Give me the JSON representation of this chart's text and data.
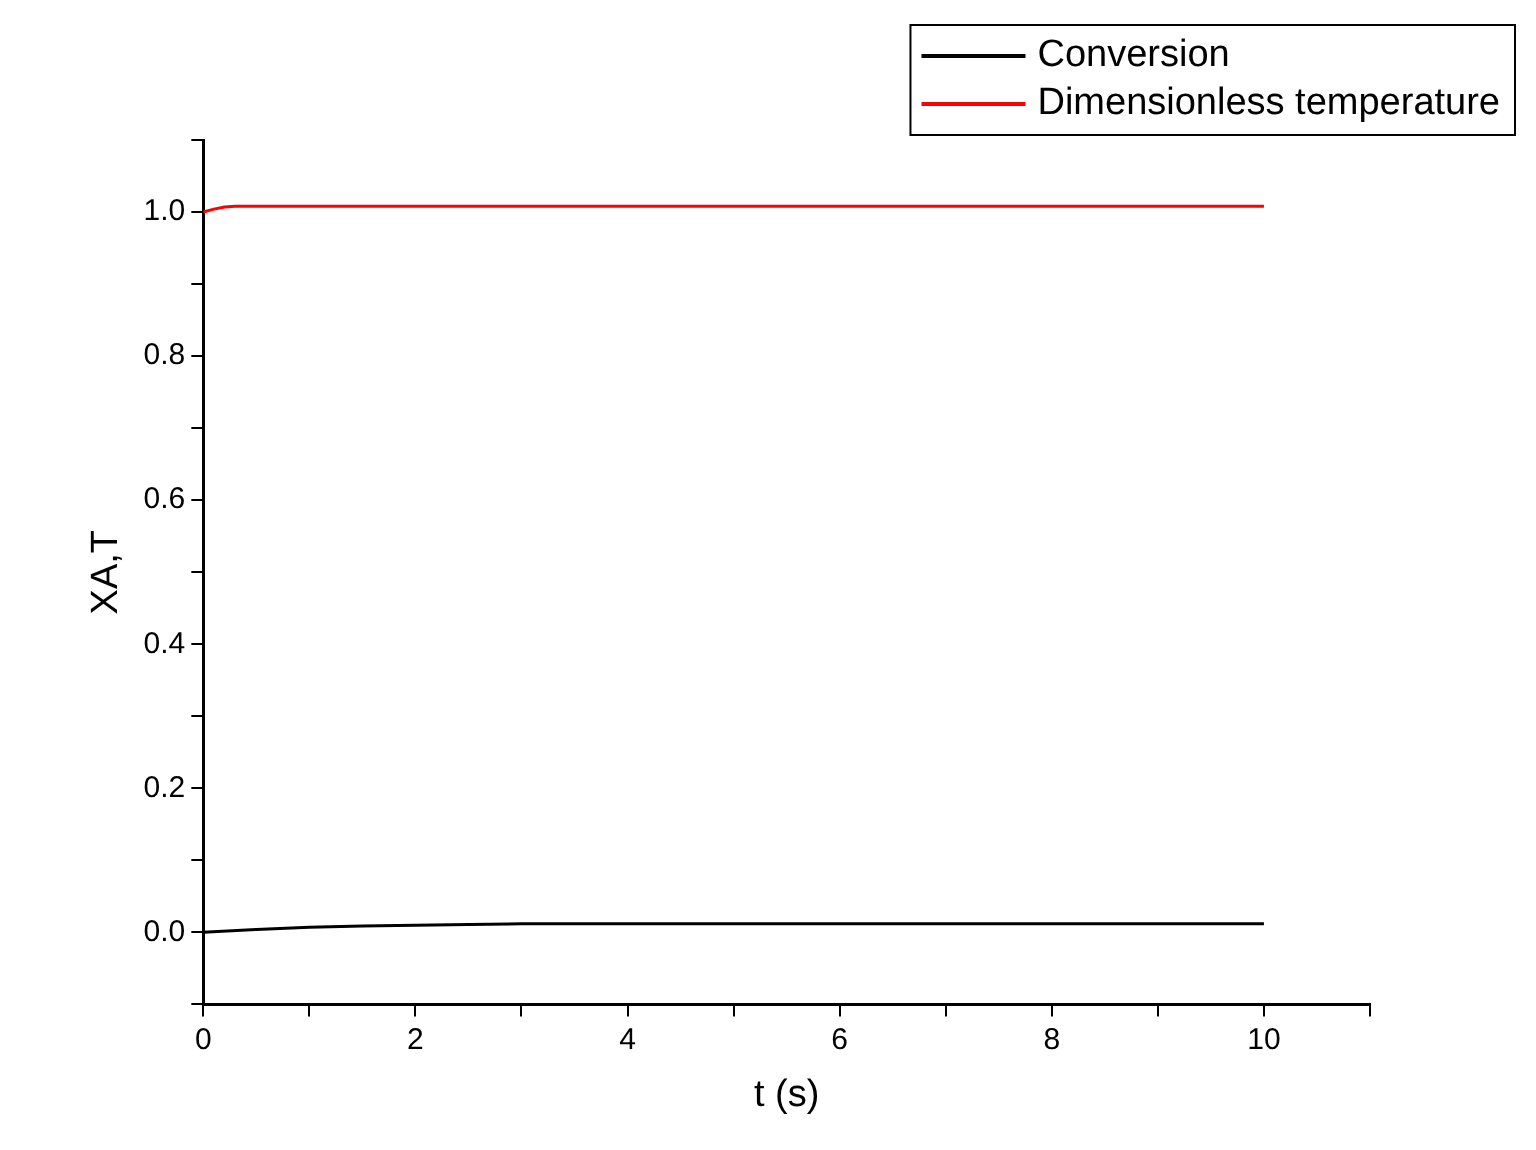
{
  "chart_data": {
    "type": "line",
    "xlabel": "t (s)",
    "ylabel": "XA,T",
    "series": [
      {
        "name": "Conversion",
        "color": "#000000",
        "x": [
          0,
          0.5,
          1,
          1.5,
          2,
          2.5,
          3,
          10
        ],
        "values": [
          0,
          0.004,
          0.007,
          0.009,
          0.01,
          0.011,
          0.012,
          0.012
        ]
      },
      {
        "name": "Dimensionless temperature",
        "color": "#ff0000",
        "x": [
          0,
          0.1,
          0.2,
          0.3,
          10
        ],
        "values": [
          1.0,
          1.004,
          1.007,
          1.008,
          1.008
        ]
      }
    ],
    "xlim": [
      0,
      11
    ],
    "xticks": [
      0,
      {
        "value": 1,
        "label": null
      },
      2,
      {
        "value": 3,
        "label": null
      },
      4,
      {
        "value": 5,
        "label": null
      },
      6,
      {
        "value": 7,
        "label": null
      },
      8,
      {
        "value": 9,
        "label": null
      },
      10,
      {
        "value": 11,
        "label": null
      }
    ],
    "ylim": [
      -0.1,
      1.1
    ],
    "yticks": [
      {
        "value": -0.1,
        "label": null
      },
      {
        "value": 0,
        "label": "0.0"
      },
      {
        "value": 0.1,
        "label": null
      },
      {
        "value": 0.2,
        "label": "0.2"
      },
      {
        "value": 0.3,
        "label": null
      },
      {
        "value": 0.4,
        "label": "0.4"
      },
      {
        "value": 0.5,
        "label": null
      },
      {
        "value": 0.6,
        "label": "0.6"
      },
      {
        "value": 0.7,
        "label": null
      },
      {
        "value": 0.8,
        "label": "0.8"
      },
      {
        "value": 0.9,
        "label": null
      },
      {
        "value": 1.0,
        "label": "1.0"
      },
      {
        "value": 1.1,
        "label": null
      }
    ],
    "grid": false,
    "legend": "top right",
    "marker": "none",
    "line_style": "solid"
  }
}
